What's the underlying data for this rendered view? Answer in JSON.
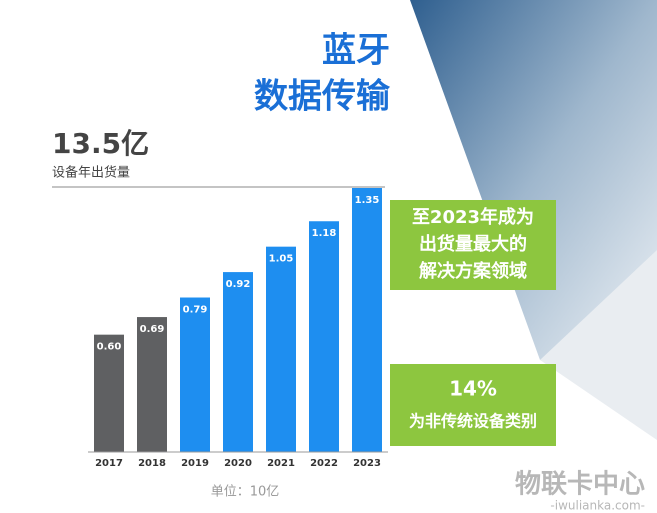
{
  "chart_data": {
    "type": "bar",
    "title": [
      "蓝牙",
      "数据传输"
    ],
    "headline": "13.5亿",
    "subtitle": "设备年出货量",
    "categories": [
      "2017",
      "2018",
      "2019",
      "2020",
      "2021",
      "2022",
      "2023"
    ],
    "values": [
      0.6,
      0.69,
      0.79,
      0.92,
      1.05,
      1.18,
      1.35
    ],
    "value_labels": [
      "0.60",
      "0.69",
      "0.79",
      "0.92",
      "1.05",
      "1.18",
      "1.35"
    ],
    "colors": [
      "#5f6062",
      "#5f6062",
      "#1e8ef0",
      "#1e8ef0",
      "#1e8ef0",
      "#1e8ef0",
      "#1e8ef0"
    ],
    "annotations": [
      [
        "至2023年成为",
        "出货量最大的",
        "解决方案领域"
      ],
      [
        "14%",
        "为非传统设备类别"
      ]
    ],
    "unit_note": "单位：10亿",
    "watermark": [
      "物联卡中心",
      "-iwulianka.com-"
    ]
  }
}
